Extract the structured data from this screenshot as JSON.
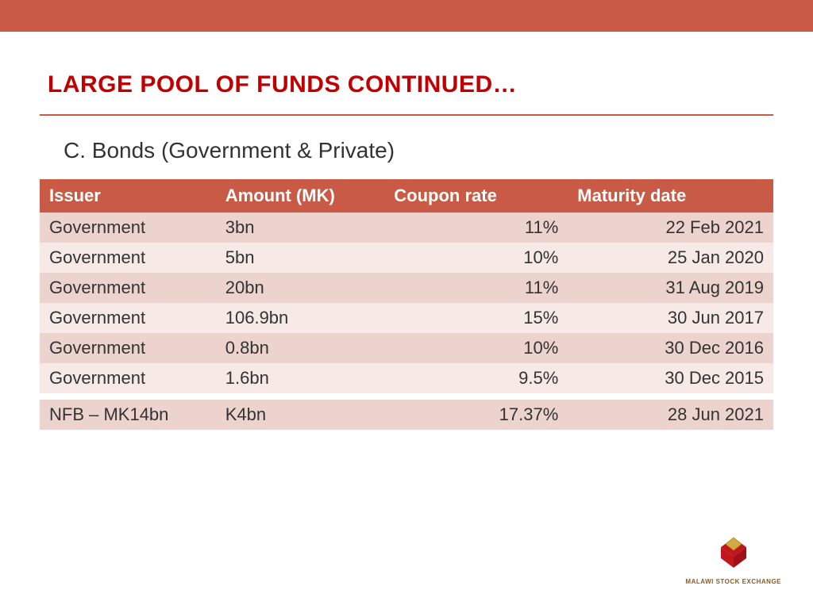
{
  "colors": {
    "top_bar": "#c85a46",
    "title_text": "#c00000",
    "rule": "#c85a46",
    "header_bg": "#c85a46",
    "header_text": "#ffffff",
    "row_dark": "#ecd3cd",
    "row_light": "#f6e9e6",
    "cell_text": "#333333",
    "logo_red": "#c0171e",
    "logo_gold": "#d4a947",
    "logo_caption": "#8a5a2a"
  },
  "slide": {
    "title": "LARGE POOL OF FUNDS CONTINUED…",
    "subtitle": "C. Bonds (Government & Private)"
  },
  "table": {
    "type": "table",
    "columns": [
      "Issuer",
      "Amount (MK)",
      "Coupon rate",
      "Maturity date"
    ],
    "col_align": [
      "left",
      "left",
      "right",
      "right"
    ],
    "col_widths_pct": [
      24,
      23,
      25,
      28
    ],
    "header_fontsize": 22,
    "cell_fontsize": 22,
    "rows": [
      [
        "Government",
        "3bn",
        "11%",
        "22 Feb 2021"
      ],
      [
        "Government",
        "5bn",
        "10%",
        "25 Jan 2020"
      ],
      [
        "Government",
        "20bn",
        "11%",
        "31 Aug 2019"
      ],
      [
        "Government",
        "106.9bn",
        "15%",
        "30 Jun 2017"
      ],
      [
        "Government",
        "0.8bn",
        "10%",
        "30 Dec 2016"
      ],
      [
        "Government",
        "1.6bn",
        "9.5%",
        "30 Dec 2015"
      ],
      [
        "NFB – MK14bn",
        "K4bn",
        "17.37%",
        "28 Jun 2021"
      ]
    ],
    "row_gap_after_index": 5
  },
  "logo": {
    "caption": "MALAWI STOCK EXCHANGE"
  }
}
